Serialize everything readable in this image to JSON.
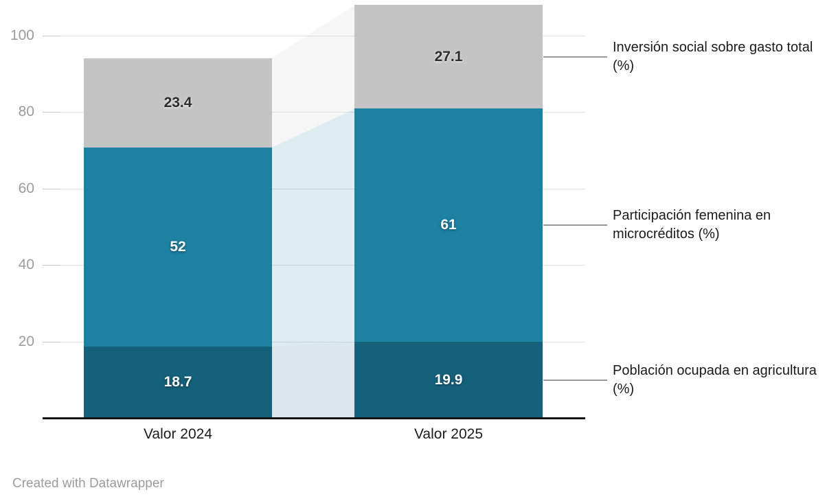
{
  "footer": {
    "credit": "Created with Datawrapper"
  },
  "chart_data": {
    "type": "bar",
    "stacked": true,
    "categories": [
      "Valor 2024",
      "Valor 2025"
    ],
    "series": [
      {
        "name": "Población ocupada en agricultura (%)",
        "values": [
          18.7,
          19.9
        ],
        "labels": [
          "18.7",
          "19.9"
        ],
        "color": "#15607a",
        "value_label_style": "light"
      },
      {
        "name": "Participación femenina en microcréditos (%)",
        "values": [
          52,
          61
        ],
        "labels": [
          "52",
          "61"
        ],
        "color": "#1d81a2",
        "value_label_style": "light"
      },
      {
        "name": "Inversión social sobre gasto total (%)",
        "values": [
          23.4,
          27.1
        ],
        "labels": [
          "23.4",
          "27.1"
        ],
        "color": "#c4c4c4",
        "value_label_style": "dark"
      }
    ],
    "totals": [
      94.1,
      108
    ],
    "y_axis": {
      "ticks": [
        20,
        40,
        60,
        80,
        100
      ],
      "tick_labels": [
        "20",
        "40",
        "60",
        "80",
        "100"
      ],
      "range": [
        0,
        100
      ]
    },
    "grid": true,
    "legend_position": "right",
    "connector_area_opacity": 0.15,
    "colors": {
      "background": "#ffffff",
      "axis_line": "#141414",
      "gridline": "#e4e4e4",
      "tick_label": "#9b9b9b",
      "category_label": "#1c1c1c",
      "annotation_text": "#1a1a1a",
      "annotation_line": "#9a9a9a",
      "credit_text": "#9b9b9b"
    }
  }
}
